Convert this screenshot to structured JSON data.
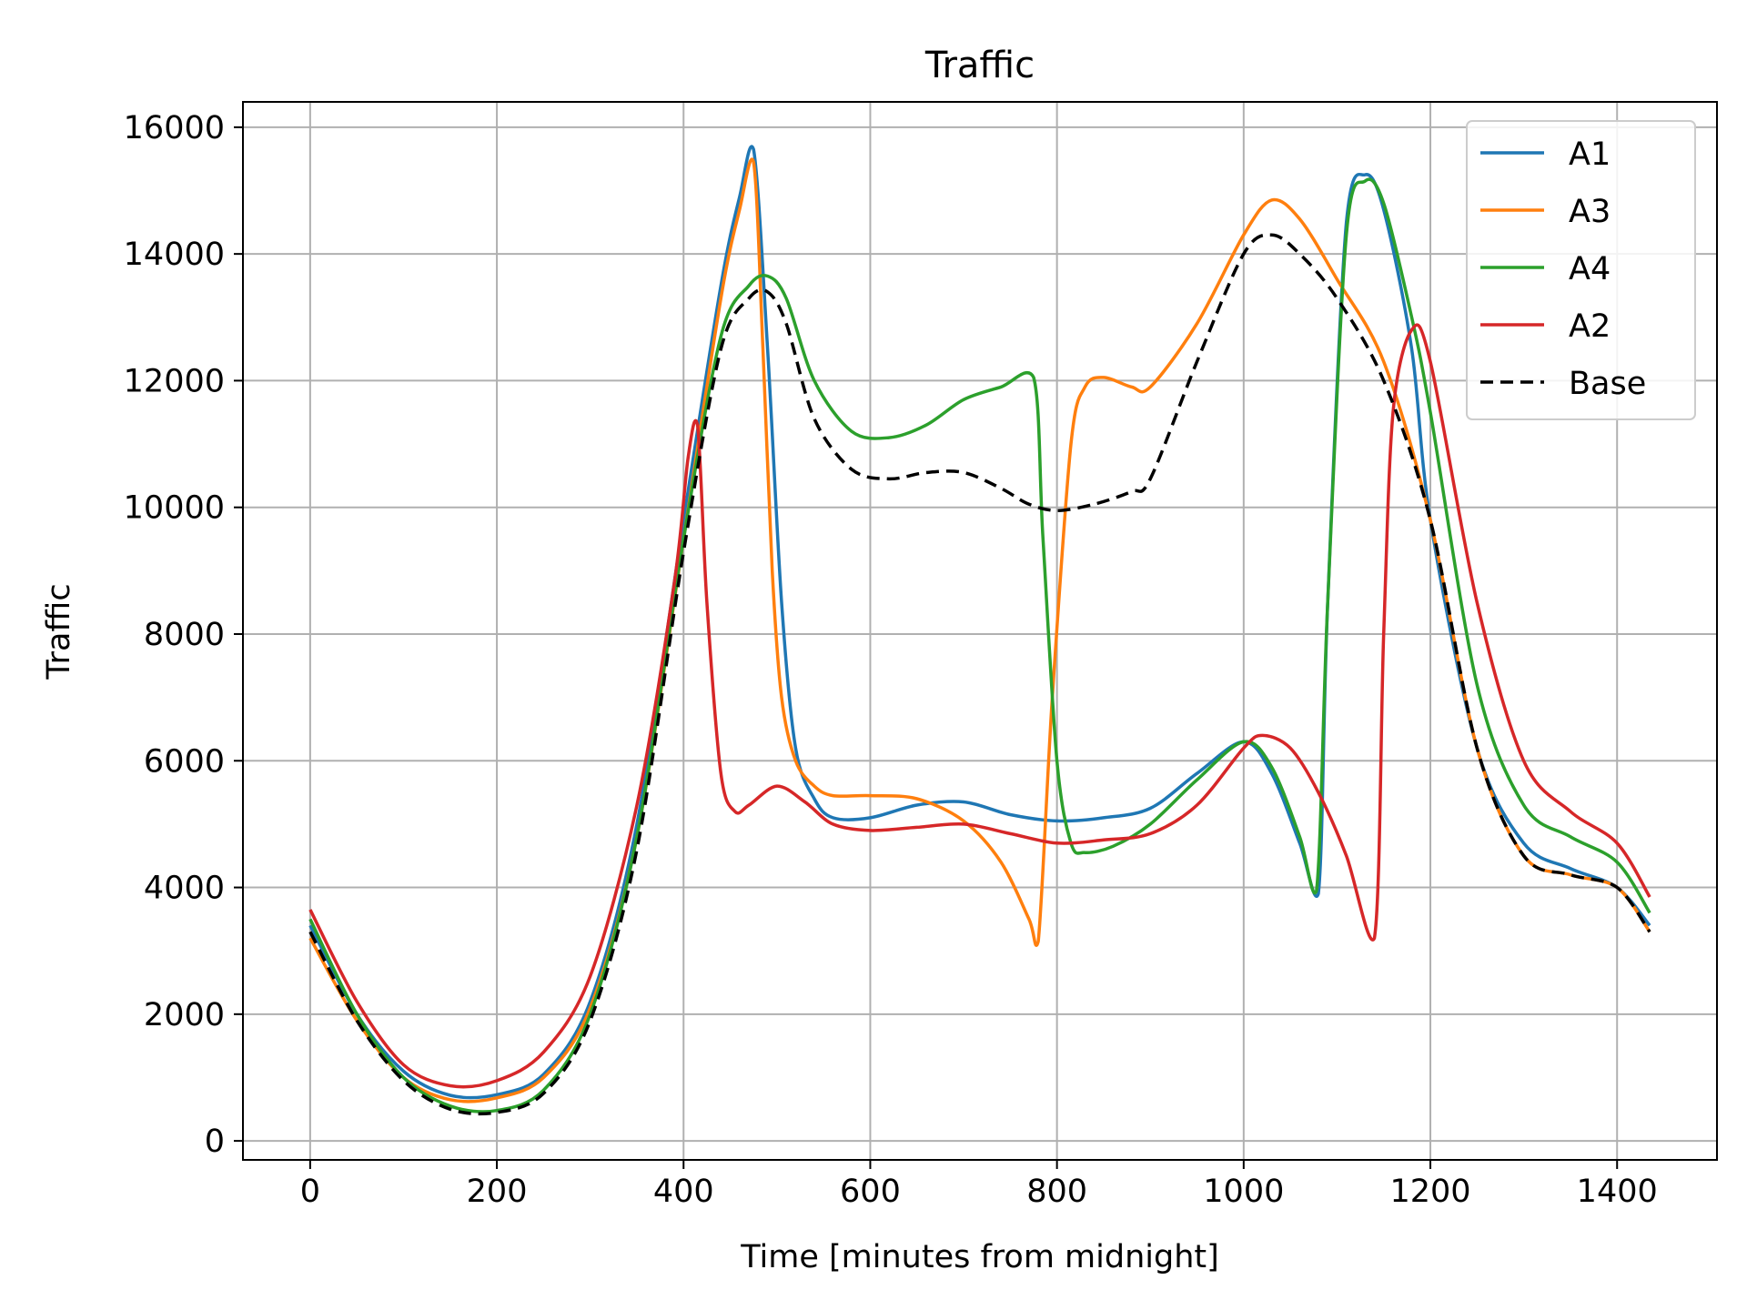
{
  "chart_data": {
    "type": "line",
    "title": "Traffic",
    "xlabel": "Time [minutes from midnight]",
    "ylabel": "Traffic",
    "xlim": [
      -72,
      1507
    ],
    "ylim": [
      -300,
      16400
    ],
    "xticks": [
      0,
      200,
      400,
      600,
      800,
      1000,
      1200,
      1400
    ],
    "yticks": [
      0,
      2000,
      4000,
      6000,
      8000,
      10000,
      12000,
      14000,
      16000
    ],
    "grid": true,
    "legend_position": "top-right",
    "series": [
      {
        "name": "A1",
        "color": "#1f77b4",
        "dash": "solid",
        "x": [
          0,
          50,
          100,
          150,
          200,
          250,
          300,
          350,
          400,
          440,
          460,
          475,
          490,
          505,
          520,
          540,
          560,
          600,
          650,
          700,
          750,
          800,
          850,
          900,
          950,
          1000,
          1030,
          1060,
          1080,
          1090,
          1110,
          1130,
          1150,
          1180,
          1200,
          1250,
          1300,
          1350,
          1400,
          1435
        ],
        "y": [
          3400,
          2000,
          1100,
          720,
          730,
          1050,
          2200,
          5000,
          9800,
          13500,
          14900,
          15650,
          12500,
          8500,
          6200,
          5400,
          5100,
          5100,
          5300,
          5350,
          5150,
          5050,
          5100,
          5250,
          5800,
          6300,
          5800,
          4700,
          3900,
          8500,
          14500,
          15250,
          14700,
          12500,
          9800,
          6200,
          4700,
          4300,
          4000,
          3400
        ]
      },
      {
        "name": "A3",
        "color": "#ff7f0e",
        "dash": "solid",
        "x": [
          0,
          50,
          100,
          150,
          200,
          250,
          300,
          350,
          400,
          440,
          460,
          475,
          485,
          495,
          505,
          520,
          540,
          560,
          600,
          650,
          700,
          740,
          770,
          780,
          795,
          815,
          830,
          850,
          880,
          900,
          950,
          1000,
          1030,
          1060,
          1100,
          1150,
          1200,
          1250,
          1300,
          1350,
          1400,
          1435
        ],
        "y": [
          3200,
          1900,
          1000,
          650,
          680,
          1000,
          2100,
          4800,
          9500,
          13300,
          14700,
          15450,
          12500,
          9000,
          7000,
          6000,
          5600,
          5450,
          5450,
          5400,
          5050,
          4400,
          3500,
          3150,
          7000,
          11000,
          11900,
          12050,
          11900,
          11900,
          12900,
          14300,
          14850,
          14550,
          13600,
          12300,
          9800,
          6200,
          4500,
          4200,
          4000,
          3300
        ]
      },
      {
        "name": "A4",
        "color": "#2ca02c",
        "dash": "solid",
        "x": [
          0,
          50,
          100,
          150,
          200,
          250,
          300,
          350,
          400,
          440,
          470,
          490,
          510,
          540,
          580,
          620,
          660,
          700,
          740,
          775,
          785,
          800,
          815,
          830,
          860,
          900,
          950,
          1000,
          1030,
          1060,
          1078,
          1090,
          1110,
          1130,
          1150,
          1180,
          1200,
          1250,
          1300,
          1350,
          1400,
          1435
        ],
        "y": [
          3500,
          2000,
          1000,
          550,
          480,
          800,
          2000,
          4800,
          9500,
          12700,
          13500,
          13650,
          13300,
          12000,
          11200,
          11100,
          11300,
          11700,
          11900,
          12050,
          9500,
          6000,
          4700,
          4550,
          4650,
          5000,
          5700,
          6300,
          5900,
          4800,
          3950,
          8500,
          14300,
          15150,
          14800,
          13000,
          11500,
          7200,
          5300,
          4800,
          4400,
          3600
        ]
      },
      {
        "name": "A2",
        "color": "#d62728",
        "dash": "solid",
        "x": [
          0,
          50,
          100,
          150,
          200,
          250,
          300,
          350,
          390,
          405,
          415,
          425,
          440,
          455,
          470,
          500,
          530,
          560,
          600,
          650,
          700,
          750,
          800,
          850,
          900,
          950,
          1000,
          1020,
          1050,
          1080,
          1110,
          1140,
          1150,
          1160,
          1180,
          1200,
          1250,
          1300,
          1350,
          1400,
          1435
        ],
        "y": [
          3650,
          2200,
          1200,
          870,
          950,
          1400,
          2600,
          5300,
          8800,
          10800,
          11300,
          8500,
          5800,
          5200,
          5300,
          5600,
          5350,
          5000,
          4900,
          4950,
          5000,
          4850,
          4700,
          4750,
          4850,
          5300,
          6200,
          6400,
          6200,
          5500,
          4500,
          3200,
          8000,
          11500,
          12800,
          12300,
          8500,
          6000,
          5200,
          4700,
          3850
        ]
      },
      {
        "name": "Base",
        "color": "#000000",
        "dash": "dashed",
        "x": [
          0,
          50,
          100,
          150,
          200,
          250,
          300,
          350,
          400,
          440,
          470,
          490,
          510,
          540,
          580,
          620,
          660,
          700,
          740,
          770,
          800,
          840,
          880,
          900,
          950,
          1000,
          1030,
          1060,
          1100,
          1150,
          1200,
          1250,
          1300,
          1350,
          1400,
          1435
        ],
        "y": [
          3300,
          1900,
          950,
          500,
          450,
          750,
          1900,
          4600,
          9300,
          12500,
          13300,
          13400,
          12900,
          11400,
          10600,
          10450,
          10550,
          10550,
          10300,
          10050,
          9950,
          10050,
          10250,
          10450,
          12300,
          14000,
          14300,
          14000,
          13300,
          12000,
          9800,
          6200,
          4500,
          4200,
          4000,
          3300
        ]
      }
    ]
  }
}
